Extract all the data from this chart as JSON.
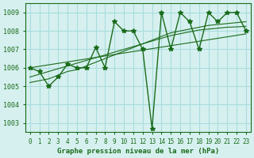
{
  "title": "Graphe pression niveau de la mer (hPa)",
  "background_color": "#d6f0ef",
  "grid_color": "#aadddd",
  "line_color": "#1a6b1a",
  "xlim": [
    -0.5,
    23.5
  ],
  "ylim": [
    1002.5,
    1009.5
  ],
  "yticks": [
    1003,
    1004,
    1005,
    1006,
    1007,
    1008,
    1009
  ],
  "xticks": [
    0,
    1,
    2,
    3,
    4,
    5,
    6,
    7,
    8,
    9,
    10,
    11,
    12,
    13,
    14,
    15,
    16,
    17,
    18,
    19,
    20,
    21,
    22,
    23
  ],
  "main_data": [
    1006,
    1005.8,
    1005,
    1005.5,
    1006.2,
    1006,
    1006,
    1007.1,
    1006,
    1008.5,
    1008,
    1008,
    1007,
    1002.7,
    1009,
    1007,
    1009,
    1008.5,
    1007,
    1009,
    1008.5,
    1009,
    1009,
    1008
  ],
  "trend1": [
    1005.2,
    1005.3,
    1005.4,
    1005.6,
    1005.8,
    1005.9,
    1006.1,
    1006.3,
    1006.5,
    1006.7,
    1006.9,
    1007.1,
    1007.3,
    1007.5,
    1007.7,
    1007.9,
    1008.0,
    1008.1,
    1008.2,
    1008.3,
    1008.35,
    1008.4,
    1008.45,
    1008.5
  ],
  "trend2": [
    1005.5,
    1005.65,
    1005.8,
    1005.95,
    1006.1,
    1006.25,
    1006.4,
    1006.55,
    1006.7,
    1006.85,
    1007.0,
    1007.15,
    1007.3,
    1007.45,
    1007.6,
    1007.75,
    1007.85,
    1007.95,
    1008.05,
    1008.1,
    1008.15,
    1008.2,
    1008.22,
    1008.25
  ],
  "trend3": [
    1006.0,
    1006.08,
    1006.16,
    1006.24,
    1006.32,
    1006.4,
    1006.48,
    1006.56,
    1006.64,
    1006.72,
    1006.8,
    1006.88,
    1006.96,
    1007.04,
    1007.12,
    1007.2,
    1007.28,
    1007.36,
    1007.44,
    1007.52,
    1007.6,
    1007.68,
    1007.76,
    1007.84
  ]
}
